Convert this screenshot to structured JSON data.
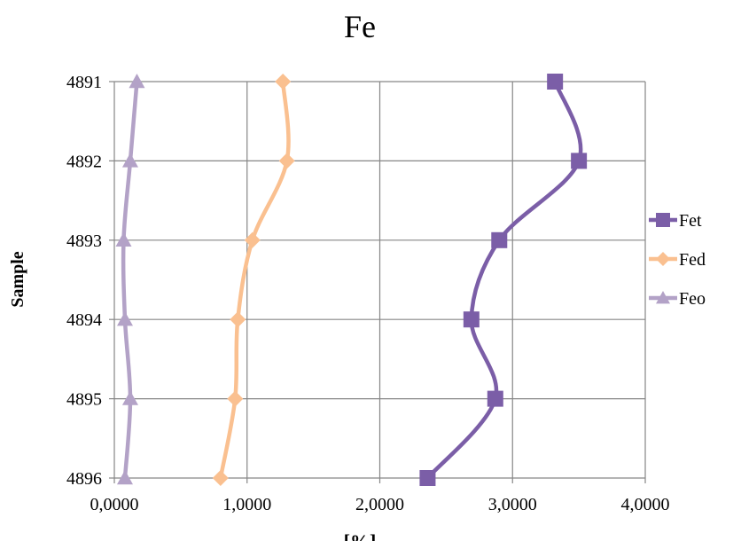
{
  "chart_data": {
    "type": "line",
    "title": "Fe",
    "xlabel": "[%]",
    "ylabel": "Sample",
    "xlim": [
      0,
      4
    ],
    "x_ticks": [
      0,
      1,
      2,
      3,
      4
    ],
    "x_tick_labels": [
      "0,0000",
      "1,0000",
      "2,0000",
      "3,0000",
      "4,0000"
    ],
    "categories": [
      "4891",
      "4892",
      "4893",
      "4894",
      "4895",
      "4896"
    ],
    "grid": true,
    "legend_position": "right",
    "series": [
      {
        "name": "Fet",
        "color": "#7b5ea7",
        "marker": "square",
        "values": [
          3.32,
          3.5,
          2.9,
          2.69,
          2.87,
          2.36
        ]
      },
      {
        "name": "Fed",
        "color": "#fac090",
        "marker": "diamond",
        "values": [
          1.27,
          1.3,
          1.04,
          0.93,
          0.91,
          0.8
        ]
      },
      {
        "name": "Feo",
        "color": "#b3a2c7",
        "marker": "triangle",
        "values": [
          0.17,
          0.12,
          0.07,
          0.08,
          0.12,
          0.08
        ]
      }
    ]
  }
}
